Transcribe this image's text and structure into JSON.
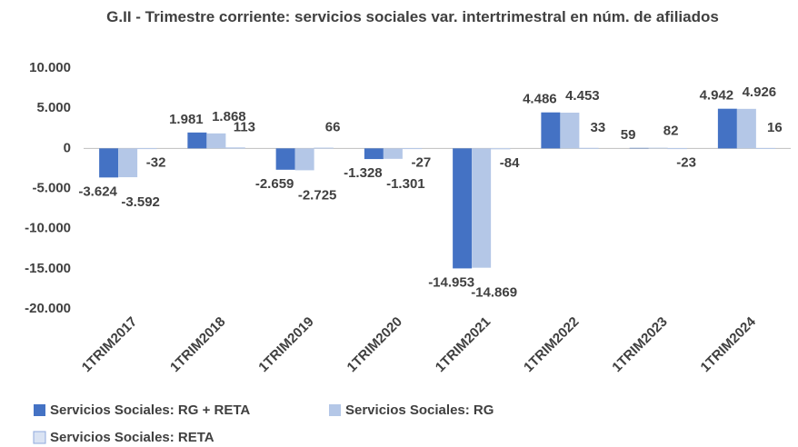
{
  "chart_data": {
    "type": "bar",
    "title": "G.II - Trimestre corriente: servicios sociales var. intertrimestral en núm. de afiliados",
    "categories": [
      "1TRIM2017",
      "1TRIM2018",
      "1TRIM2019",
      "1TRIM2020",
      "1TRIM2021",
      "1TRIM2022",
      "1TRIM2023",
      "1TRIM2024"
    ],
    "series": [
      {
        "name": "Servicios Sociales: RG + RETA",
        "color": "#4472c4",
        "values": [
          -3624,
          1981,
          -2659,
          -1328,
          -14953,
          4486,
          59,
          4942
        ],
        "value_labels": [
          "-3.624",
          "1.981",
          "-2.659",
          "-1.328",
          "-14.953",
          "4.486",
          "59",
          "4.942"
        ]
      },
      {
        "name": "Servicios Sociales: RG",
        "color": "#b4c7e7",
        "values": [
          -3592,
          1868,
          -2725,
          -1301,
          -14869,
          4453,
          82,
          4926
        ],
        "value_labels": [
          "-3.592",
          "1.868",
          "-2.725",
          "-1.301",
          "-14.869",
          "4.453",
          "82",
          "4.926"
        ]
      },
      {
        "name": "Servicios Sociales: RETA",
        "color": "#dae3f3",
        "values": [
          -32,
          113,
          66,
          -27,
          -84,
          33,
          -23,
          16
        ],
        "value_labels": [
          "-32",
          "113",
          "66",
          "-27",
          "-84",
          "33",
          "-23",
          "16"
        ]
      }
    ],
    "ylim": [
      -20000,
      10000
    ],
    "yticks": [
      {
        "value": 10000,
        "label": "10.000"
      },
      {
        "value": 5000,
        "label": "5.000"
      },
      0,
      {
        "value": -5000,
        "label": "-5.000"
      },
      {
        "value": -10000,
        "label": "-10.000"
      },
      {
        "value": -15000,
        "label": "-15.000"
      },
      {
        "value": -20000,
        "label": "-20.000"
      }
    ],
    "grid": false
  }
}
